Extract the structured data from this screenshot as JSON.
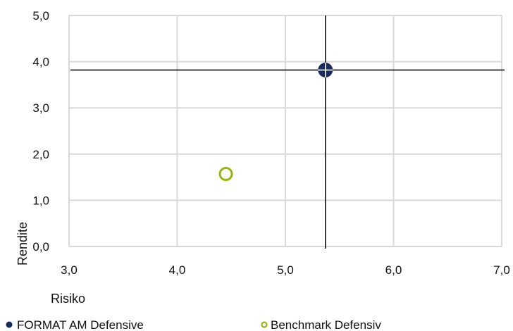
{
  "chart_data": {
    "type": "scatter",
    "xlabel": "Risiko",
    "ylabel": "Rendite",
    "xlim": [
      3.0,
      7.0
    ],
    "ylim": [
      0.0,
      5.0
    ],
    "x_ticks": [
      "3,0",
      "4,0",
      "5,0",
      "6,0",
      "7,0"
    ],
    "y_ticks": [
      "0,0",
      "1,0",
      "2,0",
      "3,0",
      "4,0",
      "5,0"
    ],
    "grid": true,
    "legend_position": "bottom",
    "series": [
      {
        "name": "FORMAT AM Defensive",
        "color": "#1b2a5c",
        "marker": "filled-circle-crosshair",
        "x": [
          5.37
        ],
        "y": [
          3.82
        ]
      },
      {
        "name": "Benchmark Defensiv",
        "color": "#9bb31a",
        "marker": "hollow-circle",
        "x": [
          4.45
        ],
        "y": [
          1.57
        ]
      }
    ]
  }
}
